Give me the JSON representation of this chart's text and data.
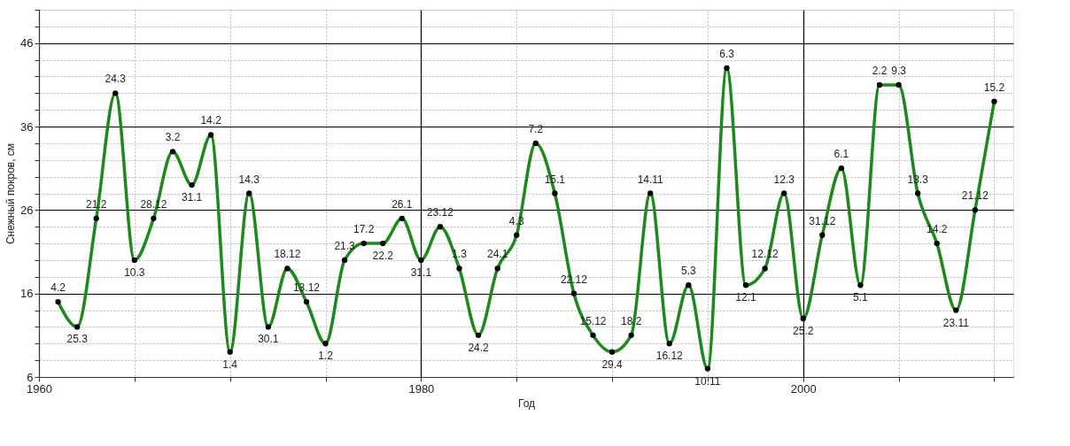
{
  "chart_data": {
    "type": "line",
    "xlabel": "Год",
    "ylabel": "Снежный покров, см",
    "x": [
      1961,
      1962,
      1963,
      1964,
      1965,
      1966,
      1967,
      1968,
      1969,
      1970,
      1971,
      1972,
      1973,
      1974,
      1975,
      1976,
      1977,
      1978,
      1979,
      1980,
      1981,
      1982,
      1983,
      1984,
      1985,
      1986,
      1987,
      1988,
      1989,
      1990,
      1991,
      1992,
      1993,
      1994,
      1995,
      1996,
      1997,
      1998,
      1999,
      2000,
      2001,
      2002,
      2003,
      2004,
      2005,
      2006,
      2007,
      2008,
      2009,
      2010
    ],
    "series": [
      {
        "color": "#1b8a1b",
        "values": [
          15,
          12,
          25,
          40,
          20,
          25,
          33,
          29,
          35,
          9,
          28,
          12,
          19,
          15,
          10,
          20,
          22,
          22,
          25,
          20,
          24,
          19,
          11,
          19,
          23,
          34,
          28,
          16,
          11,
          9,
          11,
          28,
          10,
          17,
          7,
          43,
          17,
          19,
          28,
          13,
          23,
          31,
          17,
          41,
          41,
          28,
          22,
          14,
          26,
          39
        ]
      }
    ],
    "annotations": [
      {
        "text": "4.2",
        "x": 1961,
        "y": 15
      },
      {
        "text": "25.3",
        "x": 1962,
        "y": 12
      },
      {
        "text": "21.2",
        "x": 1963,
        "y": 25
      },
      {
        "text": "24.3",
        "x": 1964,
        "y": 40
      },
      {
        "text": "10.3",
        "x": 1965,
        "y": 20
      },
      {
        "text": "28.12",
        "x": 1966,
        "y": 25
      },
      {
        "text": "3.2",
        "x": 1967,
        "y": 33
      },
      {
        "text": "31.1",
        "x": 1968,
        "y": 29
      },
      {
        "text": "14.2",
        "x": 1969,
        "y": 35
      },
      {
        "text": "1.4",
        "x": 1970,
        "y": 9
      },
      {
        "text": "14.3",
        "x": 1971,
        "y": 28
      },
      {
        "text": "30.1",
        "x": 1972,
        "y": 12
      },
      {
        "text": "18.12",
        "x": 1973,
        "y": 19
      },
      {
        "text": "13.12",
        "x": 1974,
        "y": 15
      },
      {
        "text": "1.2",
        "x": 1975,
        "y": 10
      },
      {
        "text": "21.3",
        "x": 1976,
        "y": 20
      },
      {
        "text": "17.2",
        "x": 1977,
        "y": 22
      },
      {
        "text": "22.2",
        "x": 1978,
        "y": 22
      },
      {
        "text": "26.1",
        "x": 1979,
        "y": 25
      },
      {
        "text": "31.1",
        "x": 1980,
        "y": 20
      },
      {
        "text": "23.12",
        "x": 1981,
        "y": 24
      },
      {
        "text": "1.3",
        "x": 1982,
        "y": 19
      },
      {
        "text": "24.2",
        "x": 1983,
        "y": 11
      },
      {
        "text": "24.1",
        "x": 1984,
        "y": 19
      },
      {
        "text": "4.3",
        "x": 1985,
        "y": 23
      },
      {
        "text": "7.2",
        "x": 1986,
        "y": 34
      },
      {
        "text": "15.1",
        "x": 1987,
        "y": 28
      },
      {
        "text": "22.12",
        "x": 1988,
        "y": 16
      },
      {
        "text": "15.12",
        "x": 1989,
        "y": 11
      },
      {
        "text": "29.4",
        "x": 1990,
        "y": 9
      },
      {
        "text": "18.2",
        "x": 1991,
        "y": 11
      },
      {
        "text": "14.11",
        "x": 1992,
        "y": 28
      },
      {
        "text": "16.12",
        "x": 1993,
        "y": 10
      },
      {
        "text": "5.3",
        "x": 1994,
        "y": 17
      },
      {
        "text": "10.11",
        "x": 1995,
        "y": 7
      },
      {
        "text": "6.3",
        "x": 1996,
        "y": 43
      },
      {
        "text": "12.1",
        "x": 1997,
        "y": 17
      },
      {
        "text": "12.12",
        "x": 1998,
        "y": 19
      },
      {
        "text": "12.3",
        "x": 1999,
        "y": 28
      },
      {
        "text": "25.2",
        "x": 2000,
        "y": 13
      },
      {
        "text": "31.12",
        "x": 2001,
        "y": 23
      },
      {
        "text": "6.1",
        "x": 2002,
        "y": 31
      },
      {
        "text": "5.1",
        "x": 2003,
        "y": 17
      },
      {
        "text": "2.2",
        "x": 2004,
        "y": 41
      },
      {
        "text": "9.3",
        "x": 2005,
        "y": 41
      },
      {
        "text": "13.3",
        "x": 2006,
        "y": 28
      },
      {
        "text": "14.2",
        "x": 2007,
        "y": 22
      },
      {
        "text": "23.11",
        "x": 2008,
        "y": 14
      },
      {
        "text": "21.12",
        "x": 2009,
        "y": 26
      },
      {
        "text": "15.2",
        "x": 2010,
        "y": 39
      }
    ],
    "xlim": [
      1960,
      2011
    ],
    "xticks": [
      1960,
      {
        "value": 1965,
        "label": null
      },
      {
        "value": 1970,
        "label": null
      },
      {
        "value": 1975,
        "label": null
      },
      1980,
      {
        "value": 1985,
        "label": null
      },
      {
        "value": 1990,
        "label": null
      },
      {
        "value": 1995,
        "label": null
      },
      2000,
      {
        "value": 2005,
        "label": null
      },
      {
        "value": 2010,
        "label": null
      }
    ],
    "ylim": [
      6,
      50
    ],
    "yticks": [
      6,
      {
        "value": 8,
        "label": null
      },
      {
        "value": 10,
        "label": null
      },
      {
        "value": 12,
        "label": null
      },
      {
        "value": 14,
        "label": null
      },
      16,
      {
        "value": 18,
        "label": null
      },
      {
        "value": 20,
        "label": null
      },
      {
        "value": 22,
        "label": null
      },
      {
        "value": 24,
        "label": null
      },
      26,
      {
        "value": 28,
        "label": null
      },
      {
        "value": 30,
        "label": null
      },
      {
        "value": 32,
        "label": null
      },
      {
        "value": 34,
        "label": null
      },
      36,
      {
        "value": 38,
        "label": null
      },
      {
        "value": 40,
        "label": null
      },
      {
        "value": 42,
        "label": null
      },
      {
        "value": 44,
        "label": null
      },
      46,
      {
        "value": 48,
        "label": null
      },
      {
        "value": 50,
        "label": null
      }
    ],
    "grid": true,
    "marker": "circle",
    "line_style": "solid"
  }
}
